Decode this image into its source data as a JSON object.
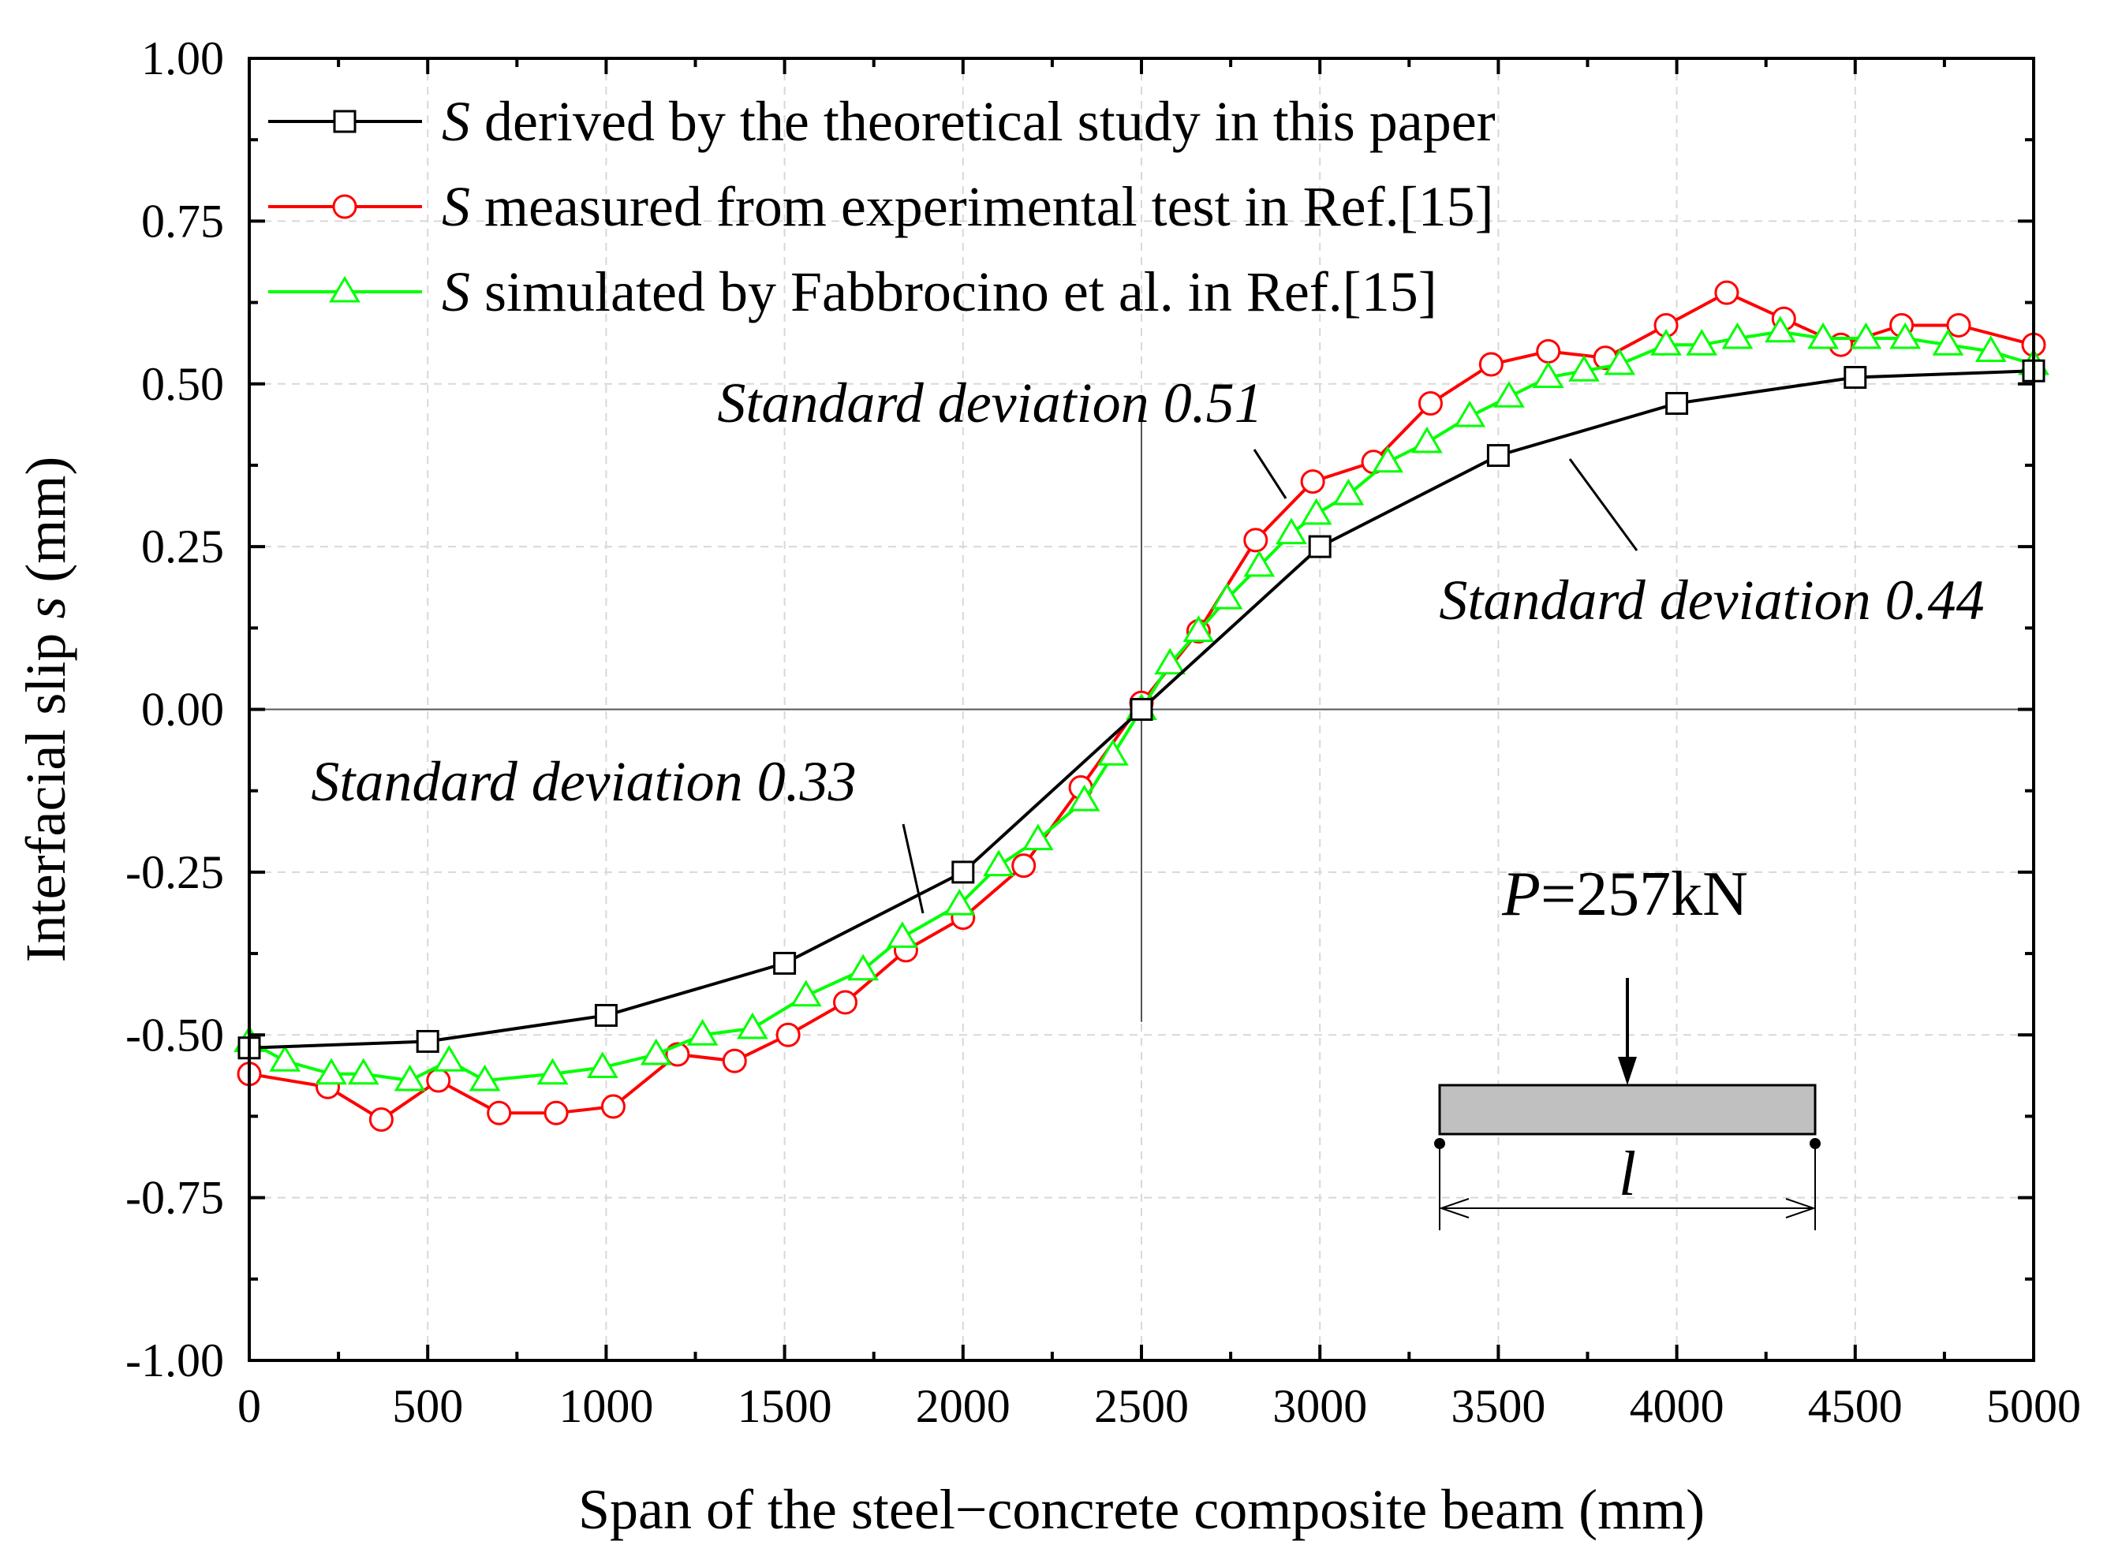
{
  "chart_data": {
    "type": "line",
    "xlabel": "Span of the steel−concrete composite beam (mm)",
    "ylabel_prefix": "Interfacial slip ",
    "ylabel_var": "s",
    "ylabel_suffix": " (mm)",
    "xlim": [
      0,
      5000
    ],
    "ylim": [
      -1.0,
      1.0
    ],
    "x_ticks": [
      0,
      500,
      1000,
      1500,
      2000,
      2500,
      3000,
      3500,
      4000,
      4500,
      5000
    ],
    "x_tick_labels": [
      "0",
      "500",
      "1000",
      "1500",
      "2000",
      "2500",
      "3000",
      "3500",
      "4000",
      "4500",
      "5000"
    ],
    "y_ticks": [
      1.0,
      0.75,
      0.5,
      0.25,
      0.0,
      -0.25,
      -0.5,
      -0.75,
      -1.0
    ],
    "y_tick_labels": [
      "1.00",
      "0.75",
      "0.50",
      "0.25",
      "0.00",
      "-0.25",
      "-0.50",
      "-0.75",
      "-1.00"
    ],
    "grid": true,
    "legend_position": "top-left",
    "series": [
      {
        "name": "derived by the theoretical study in this paper",
        "symbol": "S",
        "color": "#000000",
        "marker": "square",
        "x": [
          0,
          500,
          1000,
          1500,
          2000,
          2500,
          3000,
          3500,
          4000,
          4500,
          5000
        ],
        "y": [
          -0.52,
          -0.51,
          -0.47,
          -0.39,
          -0.25,
          0.0,
          0.25,
          0.39,
          0.47,
          0.51,
          0.52
        ]
      },
      {
        "name": "measured from experimental test in Ref.[15]",
        "symbol": "S",
        "color": "#ff0000",
        "marker": "circle",
        "x": [
          0,
          220,
          370,
          530,
          700,
          860,
          1020,
          1200,
          1360,
          1510,
          1670,
          1840,
          2000,
          2170,
          2330,
          2500,
          2660,
          2820,
          2980,
          3150,
          3310,
          3480,
          3640,
          3800,
          3970,
          4140,
          4300,
          4460,
          4630,
          4790,
          5000
        ],
        "y": [
          -0.56,
          -0.58,
          -0.63,
          -0.57,
          -0.62,
          -0.62,
          -0.61,
          -0.53,
          -0.54,
          -0.5,
          -0.45,
          -0.37,
          -0.32,
          -0.24,
          -0.12,
          0.01,
          0.12,
          0.26,
          0.35,
          0.38,
          0.47,
          0.53,
          0.55,
          0.54,
          0.59,
          0.64,
          0.6,
          0.56,
          0.59,
          0.59,
          0.56
        ]
      },
      {
        "name": "simulated by Fabbrocino et al. in Ref.[15]",
        "symbol": "S",
        "color": "#00ff00",
        "marker": "triangle",
        "x": [
          0,
          100,
          230,
          320,
          450,
          560,
          660,
          850,
          990,
          1140,
          1270,
          1410,
          1560,
          1720,
          1830,
          1990,
          2100,
          2210,
          2340,
          2420,
          2500,
          2580,
          2660,
          2740,
          2830,
          2920,
          2990,
          3080,
          3190,
          3300,
          3420,
          3530,
          3640,
          3740,
          3840,
          3970,
          4070,
          4170,
          4290,
          4410,
          4530,
          4640,
          4760,
          4880,
          5000
        ],
        "y": [
          -0.51,
          -0.54,
          -0.56,
          -0.56,
          -0.57,
          -0.54,
          -0.57,
          -0.56,
          -0.55,
          -0.53,
          -0.5,
          -0.49,
          -0.44,
          -0.4,
          -0.35,
          -0.3,
          -0.24,
          -0.2,
          -0.14,
          -0.07,
          0.0,
          0.07,
          0.12,
          0.17,
          0.22,
          0.27,
          0.3,
          0.33,
          0.38,
          0.41,
          0.45,
          0.48,
          0.51,
          0.52,
          0.53,
          0.56,
          0.56,
          0.57,
          0.58,
          0.57,
          0.57,
          0.57,
          0.56,
          0.55,
          0.53
        ]
      }
    ],
    "annotations": [
      {
        "text": "Standard deviation 0.51"
      },
      {
        "text": "Standard deviation 0.44"
      },
      {
        "text": "Standard deviation 0.33"
      }
    ],
    "inset": {
      "load_symbol": "P",
      "load_value": "=257kN",
      "span_symbol": "l"
    }
  }
}
